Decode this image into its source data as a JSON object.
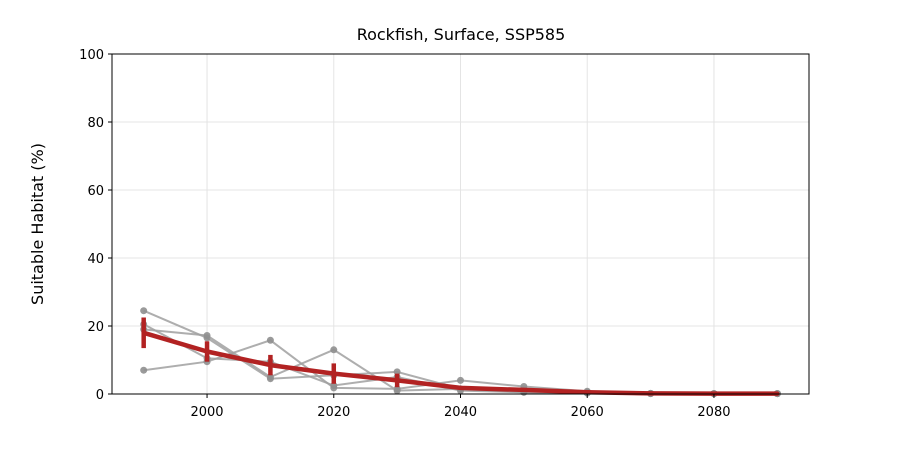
{
  "chart_data": {
    "type": "line",
    "title": "Rockfish, Surface, SSP585",
    "xlabel": "",
    "ylabel": "Suitable Habitat (%)",
    "xlim": [
      1985,
      2095
    ],
    "ylim": [
      0,
      100
    ],
    "xticks": [
      2000,
      2020,
      2040,
      2060,
      2080
    ],
    "yticks": [
      0,
      20,
      40,
      60,
      80,
      100
    ],
    "grid": true,
    "x": [
      1990,
      2000,
      2010,
      2020,
      2030,
      2040,
      2050,
      2060,
      2070,
      2080,
      2090
    ],
    "members": [
      {
        "color": "#a0a0a0",
        "values": [
          24.5,
          16.5,
          4.5,
          5.5,
          6.5,
          1.5,
          0.5,
          0.3,
          0.1,
          0.1,
          0.1
        ]
      },
      {
        "color": "#a0a0a0",
        "values": [
          7.0,
          9.5,
          15.8,
          1.8,
          1.5,
          4.0,
          2.2,
          0.8,
          0.2,
          0.1,
          0.1
        ]
      },
      {
        "color": "#a0a0a0",
        "values": [
          20.5,
          10.5,
          9.5,
          2.5,
          5.0,
          1.0,
          0.5,
          0.3,
          0.1,
          0.1,
          0.1
        ]
      },
      {
        "color": "#a0a0a0",
        "values": [
          19.0,
          17.2,
          5.0,
          13.0,
          1.0,
          1.5,
          0.8,
          0.5,
          0.2,
          0.1,
          0.1
        ]
      }
    ],
    "mean": {
      "color": "#b22222",
      "values": [
        18.0,
        12.5,
        8.5,
        6.0,
        4.0,
        1.8,
        1.2,
        0.5,
        0.2,
        0.1,
        0.1
      ],
      "errors": [
        4.5,
        3.0,
        3.0,
        3.0,
        2.0,
        0.5,
        0.3,
        0.2,
        0.1,
        0.05,
        0.05
      ]
    }
  }
}
